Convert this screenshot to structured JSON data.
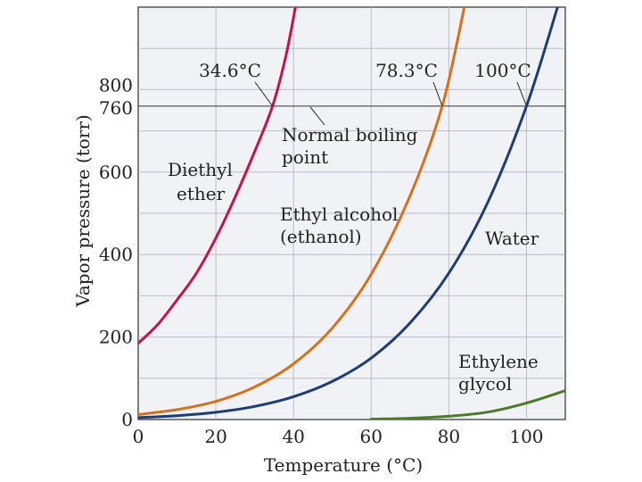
{
  "chart_data": {
    "type": "line",
    "xlabel": "Temperature (°C)",
    "ylabel": "Vapor pressure (torr)",
    "xlim": [
      0,
      110
    ],
    "ylim": [
      0,
      1000
    ],
    "x_ticks": [
      0,
      20,
      40,
      60,
      80,
      100
    ],
    "y_ticks": [
      0,
      200,
      400,
      600,
      760,
      800
    ],
    "reference_line": {
      "y": 760,
      "label_line1": "Normal boiling",
      "label_line2": "point"
    },
    "series": [
      {
        "name": "Diethyl ether",
        "label_line1": "Diethyl",
        "label_line2": "ether",
        "color": "#c0144a",
        "boiling_label": "34.6°C",
        "boiling_point": 34.6,
        "x": [
          0,
          5,
          10,
          15,
          20,
          25,
          30,
          34.6,
          38,
          40.5
        ],
        "y": [
          185,
          230,
          290,
          355,
          440,
          540,
          650,
          760,
          880,
          1000
        ]
      },
      {
        "name": "Ethyl alcohol (ethanol)",
        "label_line1": "Ethyl alcohol",
        "label_line2": "(ethanol)",
        "color": "#d4711f",
        "boiling_label": "78.3°C",
        "boiling_point": 78.3,
        "x": [
          0,
          10,
          20,
          30,
          40,
          50,
          60,
          70,
          78.3,
          84
        ],
        "y": [
          12,
          24,
          44,
          79,
          135,
          222,
          352,
          542,
          760,
          1000
        ]
      },
      {
        "name": "Water",
        "label_line1": "Water",
        "label_line2": "",
        "color": "#1f3d75",
        "boiling_label": "100°C",
        "boiling_point": 100,
        "x": [
          0,
          10,
          20,
          30,
          40,
          50,
          60,
          70,
          80,
          90,
          100,
          108
        ],
        "y": [
          4.6,
          9.2,
          17.5,
          31.8,
          55.3,
          92.5,
          149,
          234,
          355,
          526,
          760,
          1000
        ]
      },
      {
        "name": "Ethylene glycol",
        "label_line1": "Ethylene",
        "label_line2": "glycol",
        "color": "#4a7a2a",
        "boiling_label": "",
        "boiling_point": null,
        "x": [
          60,
          70,
          80,
          90,
          100,
          110
        ],
        "y": [
          1,
          3,
          8,
          18,
          40,
          70
        ]
      }
    ]
  }
}
